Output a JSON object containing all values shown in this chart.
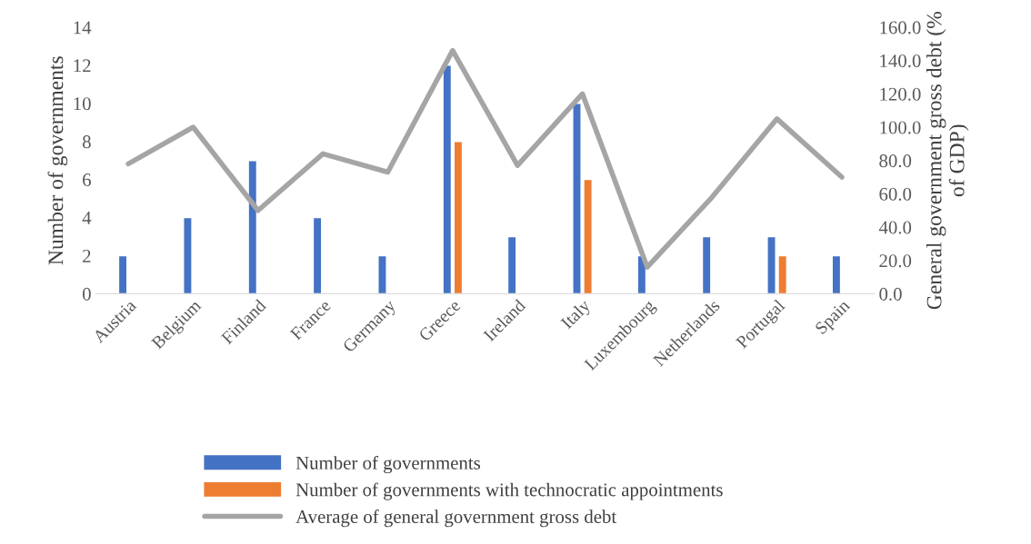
{
  "chart_data": {
    "type": "bar",
    "ylabel": "Number of governments",
    "y2label": "General government gross debt (% of GDP)",
    "categories": [
      "Austria",
      "Belgium",
      "Finland",
      "France",
      "Germany",
      "Greece",
      "Ireland",
      "Italy",
      "Luxembourg",
      "Netherlands",
      "Portugal",
      "Spain"
    ],
    "series": [
      {
        "name": "Number of governments",
        "color": "#4472c4",
        "values": [
          2,
          4,
          7,
          4,
          2,
          12,
          3,
          10,
          2,
          3,
          3,
          2
        ]
      },
      {
        "name": "Number of governments with technocratic appointments",
        "color": "#ed7d31",
        "values": [
          null,
          null,
          null,
          null,
          null,
          8,
          null,
          6,
          null,
          null,
          2,
          null
        ]
      },
      {
        "name": "Average of general government gross debt",
        "type": "line",
        "axis": "y2",
        "color": "#a5a5a5",
        "values": [
          78,
          100,
          50,
          84,
          73,
          146,
          77,
          120,
          16,
          58,
          105,
          70
        ]
      }
    ],
    "ylim": [
      0,
      14
    ],
    "yticks": [
      0,
      2,
      4,
      6,
      8,
      10,
      12,
      14
    ],
    "y2lim": [
      0,
      160
    ],
    "y2ticks": [
      {
        "value": 0,
        "label": "0.0"
      },
      {
        "value": 20,
        "label": "20.0"
      },
      {
        "value": 40,
        "label": "40.0"
      },
      {
        "value": 60,
        "label": "60.0"
      },
      {
        "value": 80,
        "label": "80.0"
      },
      {
        "value": 100,
        "label": "100.0"
      },
      {
        "value": 120,
        "label": "120.0"
      },
      {
        "value": 140,
        "label": "140.0"
      },
      {
        "value": 160,
        "label": "160.0"
      }
    ],
    "grid": false,
    "legend": "bottom"
  }
}
